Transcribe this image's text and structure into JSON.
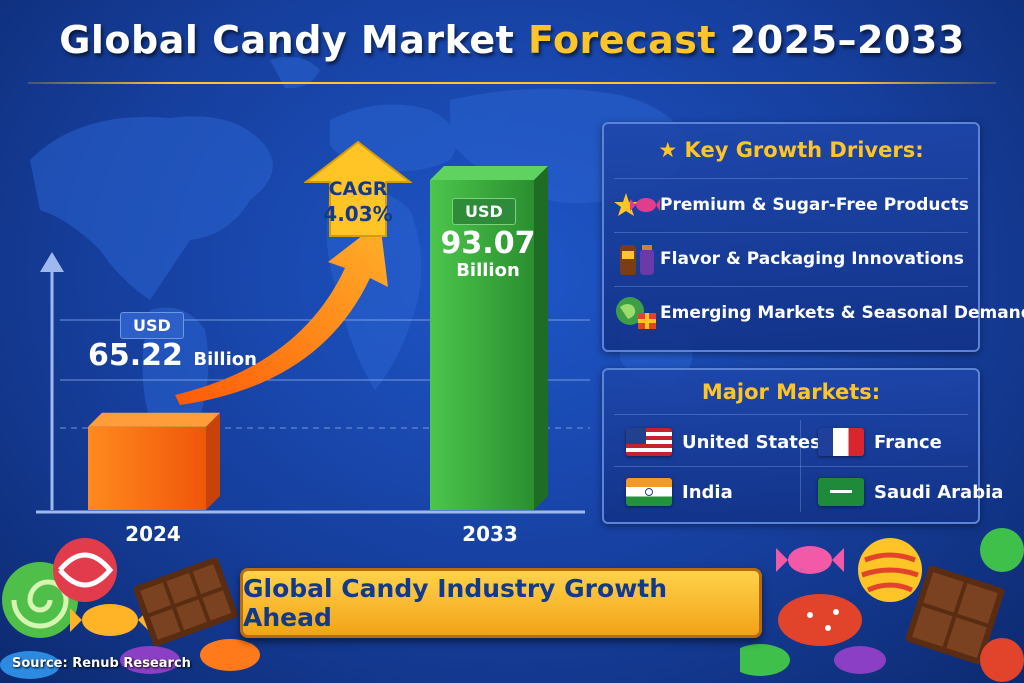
{
  "title": {
    "part1": "Global Candy Market ",
    "highlight": "Forecast",
    "part2": " 2025–2033"
  },
  "colors": {
    "background": "#163f9e",
    "accent_gold": "#ffc526",
    "bar_2024": "#ff6a10",
    "bar_2033": "#2f9e35",
    "arrow": "#ff7a12"
  },
  "chart_data": {
    "type": "bar",
    "categories": [
      "2024",
      "2033"
    ],
    "values": [
      65.22,
      93.07
    ],
    "unit": "USD Billion",
    "annotations": [
      {
        "category": "2024",
        "currency": "USD",
        "value_text": "65.22",
        "unit_text": "Billion"
      },
      {
        "category": "2033",
        "currency": "USD",
        "value_text": "93.07",
        "unit_text": "Billion"
      }
    ],
    "cagr": {
      "label": "CAGR",
      "value": "4.03%"
    },
    "grid": true
  },
  "drivers": {
    "heading": "Key Growth Drivers:",
    "heading_icon": "star-icon",
    "items": [
      {
        "label": "Premium & Sugar-Free Products",
        "icon": "star-candy-icon"
      },
      {
        "label": "Flavor & Packaging Innovations",
        "icon": "candy-jar-icon"
      },
      {
        "label": "Emerging Markets & Seasonal Demand",
        "icon": "globe-gift-icon"
      }
    ]
  },
  "markets": {
    "heading": "Major Markets:",
    "items": [
      {
        "name": "United States",
        "flag": "us-flag-icon"
      },
      {
        "name": "France",
        "flag": "france-flag-icon"
      },
      {
        "name": "India",
        "flag": "india-flag-icon"
      },
      {
        "name": "Saudi Arabia",
        "flag": "saudi-flag-icon"
      }
    ]
  },
  "banner": {
    "text": "Global Candy Industry Growth Ahead"
  },
  "source": "Source: Renub Research"
}
